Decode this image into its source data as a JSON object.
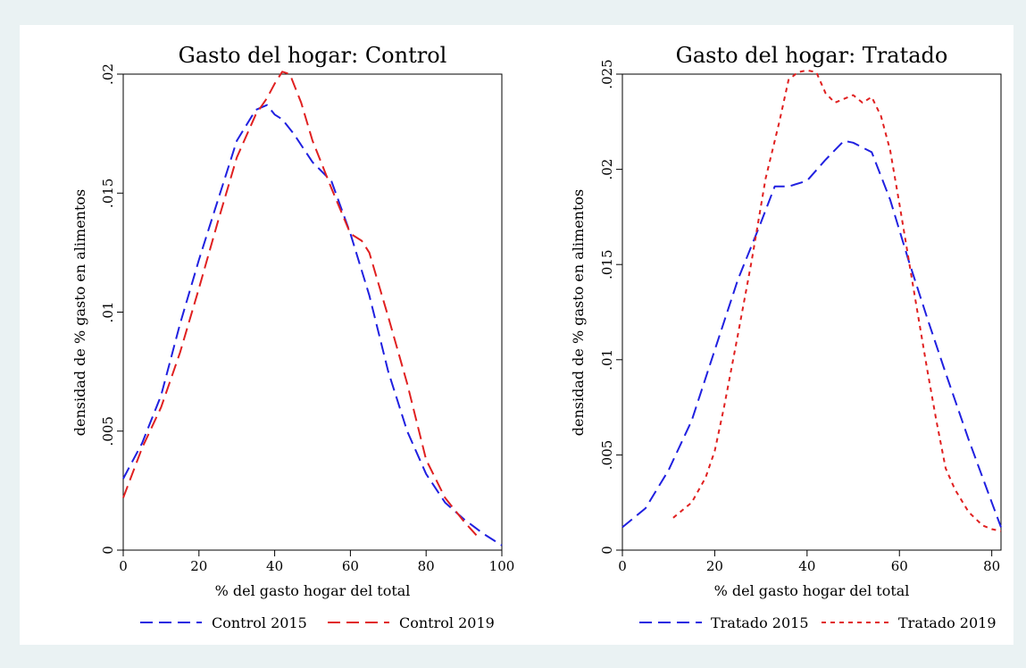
{
  "chart_data": [
    {
      "type": "line",
      "title": "Gasto del hogar: Control",
      "xlabel": "% del gasto hogar del total",
      "ylabel": "densidad de % gasto en alimentos",
      "xlim": [
        0,
        100
      ],
      "ylim": [
        0,
        0.02
      ],
      "xticks": [
        0,
        20,
        40,
        60,
        80,
        100
      ],
      "xtick_labels": [
        "0",
        "20",
        "40",
        "60",
        "80",
        "100"
      ],
      "yticks": [
        0,
        0.005,
        0.01,
        0.015,
        0.02
      ],
      "ytick_labels": [
        "0",
        ".005",
        ".01",
        ".015",
        ".02"
      ],
      "grid": false,
      "legend": "bottom",
      "series": [
        {
          "name": "Control 2015",
          "color": "#2020e0",
          "dash": "long-dash",
          "x": [
            0,
            5,
            10,
            15,
            20,
            25,
            30,
            35,
            38,
            40,
            42,
            45,
            50,
            55,
            60,
            65,
            70,
            75,
            80,
            85,
            90,
            95,
            100
          ],
          "y": [
            0.003,
            0.0045,
            0.0065,
            0.0095,
            0.0122,
            0.0147,
            0.0172,
            0.0185,
            0.0187,
            0.0183,
            0.0181,
            0.0175,
            0.0163,
            0.0155,
            0.0133,
            0.0107,
            0.0075,
            0.005,
            0.0032,
            0.002,
            0.0013,
            0.0007,
            0.0002
          ]
        },
        {
          "name": "Control 2019",
          "color": "#e02020",
          "dash": "long-dash",
          "x": [
            0,
            5,
            10,
            15,
            20,
            25,
            30,
            35,
            38,
            40,
            42,
            44,
            47,
            50,
            55,
            60,
            63,
            65,
            70,
            75,
            80,
            85,
            90,
            94
          ],
          "y": [
            0.0022,
            0.0043,
            0.006,
            0.0083,
            0.011,
            0.0138,
            0.0165,
            0.0183,
            0.019,
            0.0196,
            0.0201,
            0.02,
            0.0188,
            0.0172,
            0.0152,
            0.0133,
            0.013,
            0.0125,
            0.0098,
            0.007,
            0.0038,
            0.0022,
            0.0012,
            0.0005
          ]
        }
      ]
    },
    {
      "type": "line",
      "title": "Gasto del hogar: Tratado",
      "xlabel": "% del gasto hogar del total",
      "ylabel": "densidad de % gasto en alimentos",
      "xlim": [
        0,
        82
      ],
      "ylim": [
        0,
        0.025
      ],
      "xticks": [
        0,
        20,
        40,
        60,
        80
      ],
      "xtick_labels": [
        "0",
        "20",
        "40",
        "60",
        "80"
      ],
      "yticks": [
        0,
        0.005,
        0.01,
        0.015,
        0.02,
        0.025
      ],
      "ytick_labels": [
        "0",
        ".005",
        ".01",
        ".015",
        ".02",
        ".025"
      ],
      "grid": false,
      "legend": "bottom",
      "series": [
        {
          "name": "Tratado 2015",
          "color": "#2020e0",
          "dash": "long-dash",
          "x": [
            0,
            5,
            10,
            15,
            20,
            25,
            30,
            33,
            36,
            40,
            44,
            48,
            50,
            54,
            58,
            62,
            66,
            70,
            75,
            80,
            82
          ],
          "y": [
            0.0012,
            0.0022,
            0.0042,
            0.0068,
            0.0105,
            0.0142,
            0.0172,
            0.0191,
            0.0191,
            0.0194,
            0.0205,
            0.0215,
            0.0214,
            0.0209,
            0.0184,
            0.0152,
            0.0122,
            0.0093,
            0.0058,
            0.0025,
            0.0012
          ]
        },
        {
          "name": "Tratado 2019",
          "color": "#e02020",
          "dash": "short-dash",
          "x": [
            11,
            15,
            18,
            20,
            22,
            25,
            28,
            31,
            34,
            36,
            38,
            40,
            42,
            44,
            46,
            48,
            50,
            52,
            54,
            56,
            58,
            60,
            63,
            66,
            68,
            70,
            72,
            75,
            78,
            80,
            82
          ],
          "y": [
            0.0017,
            0.0025,
            0.0038,
            0.0052,
            0.0075,
            0.0113,
            0.0152,
            0.0195,
            0.0225,
            0.0247,
            0.0251,
            0.0252,
            0.0251,
            0.024,
            0.0235,
            0.0237,
            0.0239,
            0.0235,
            0.0238,
            0.0228,
            0.021,
            0.0182,
            0.0138,
            0.0095,
            0.0068,
            0.0043,
            0.0032,
            0.002,
            0.0013,
            0.0011,
            0.001
          ]
        }
      ]
    }
  ]
}
